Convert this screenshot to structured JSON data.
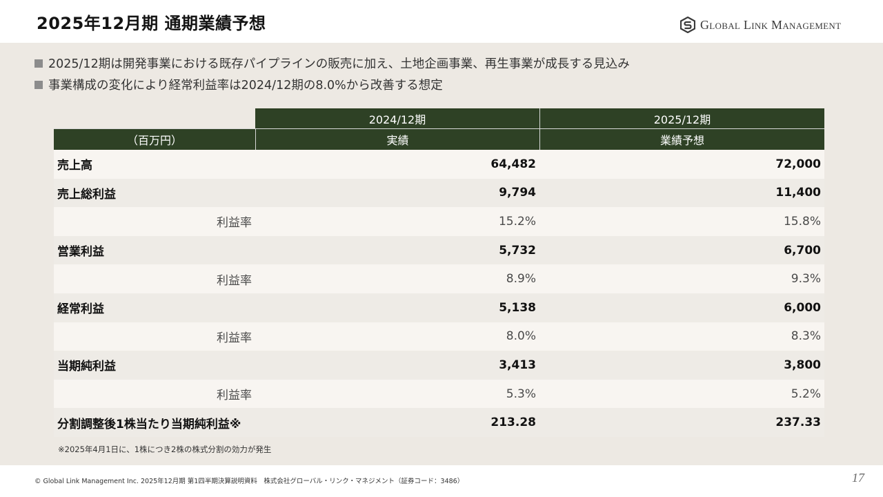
{
  "header": {
    "title": "2025年12月期 通期業績予想",
    "logo_text": "Global Link Management"
  },
  "bullets": [
    "2025/12期は開発事業における既存パイプラインの販売に加え、土地企画事業、再生事業が成長する見込み",
    "事業構成の変化により経常利益率は2024/12期の8.0%から改善する想定"
  ],
  "table": {
    "unit_label": "（百万円）",
    "columns": [
      {
        "period": "2024/12期",
        "type": "実績"
      },
      {
        "period": "2025/12期",
        "type": "業績予想"
      }
    ],
    "rows": [
      {
        "label": "売上高",
        "v2024": "64,482",
        "v2025": "72,000"
      },
      {
        "label": "売上総利益",
        "v2024": "9,794",
        "v2025": "11,400"
      },
      {
        "label": "利益率",
        "v2024": "15.2%",
        "v2025": "15.8%"
      },
      {
        "label": "営業利益",
        "v2024": "5,732",
        "v2025": "6,700"
      },
      {
        "label": "利益率",
        "v2024": "8.9%",
        "v2025": "9.3%"
      },
      {
        "label": "経常利益",
        "v2024": "5,138",
        "v2025": "6,000"
      },
      {
        "label": "利益率",
        "v2024": "8.0%",
        "v2025": "8.3%"
      },
      {
        "label": "当期純利益",
        "v2024": "3,413",
        "v2025": "3,800"
      },
      {
        "label": "利益率",
        "v2024": "5.3%",
        "v2025": "5.2%"
      },
      {
        "label": "分割調整後1株当たり当期純利益※",
        "v2024": "213.28",
        "v2025": "237.33"
      }
    ]
  },
  "footnote": "※2025年4月1日に、1株につき2株の株式分割の効力が発生",
  "footer": {
    "copyright": "© Global Link Management Inc. 2025年12月期 第1四半期決算説明資料　株式会社グローバル・リンク・マネジメント（証券コード：3486）",
    "page_number": "17"
  },
  "colors": {
    "header_green": "#2e4125",
    "content_background": "#ede9e3",
    "row_light": "#f8f5f1",
    "row_dark": "#eeebe6"
  }
}
